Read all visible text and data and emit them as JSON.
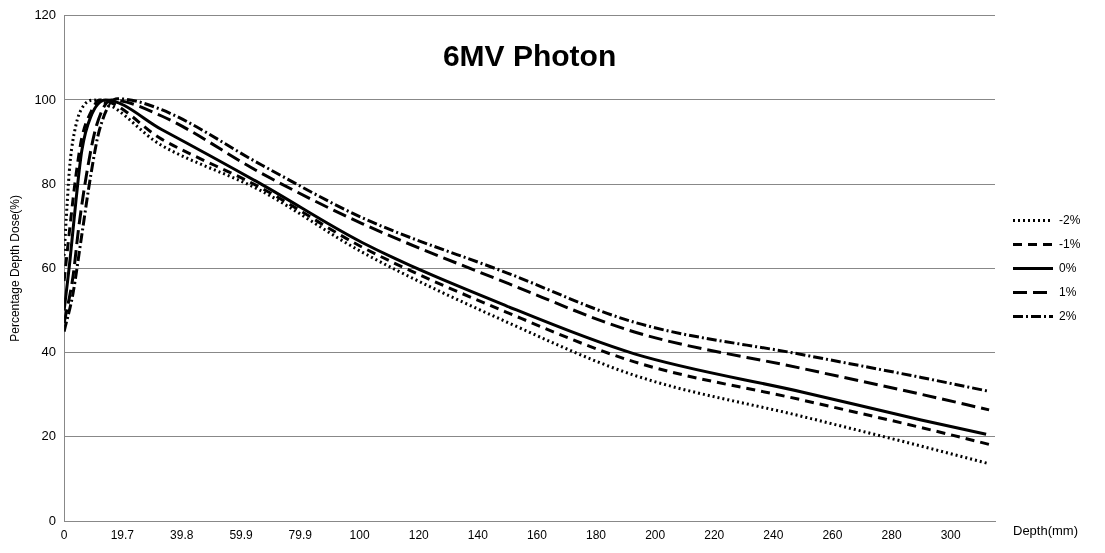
{
  "chart_data": {
    "type": "line",
    "title": "6MV Photon",
    "xlabel": "Depth(mm)",
    "ylabel": "Percentage Depth Dose(%)",
    "xlim": [
      0,
      315
    ],
    "xticks": [
      0,
      19.7,
      39.8,
      59.9,
      79.9,
      100,
      120,
      140,
      160,
      180,
      200,
      220,
      240,
      260,
      280,
      300
    ],
    "ylim": [
      0,
      120
    ],
    "yticks": [
      0,
      20,
      40,
      60,
      80,
      100,
      120
    ],
    "grid": "y",
    "legend": "right",
    "marker": "none",
    "series": [
      {
        "name": "-2%",
        "color": "#000000",
        "line_style": "dotted",
        "x": [
          0,
          1,
          2,
          4,
          6,
          10,
          33,
          67,
          101,
          150,
          193,
          250,
          290,
          313
        ],
        "values": [
          63,
          75,
          85,
          94,
          98,
          100,
          89.2,
          78.3,
          63.8,
          47.2,
          34.6,
          24.8,
          17.8,
          13.6
        ]
      },
      {
        "name": "-1%",
        "color": "#000000",
        "line_style": "dashed",
        "x": [
          0,
          2,
          4,
          6,
          9,
          12,
          33,
          67,
          101,
          150,
          193,
          250,
          290,
          313
        ],
        "values": [
          57,
          70,
          82,
          91,
          97,
          100,
          90.7,
          79,
          65,
          49.5,
          37.8,
          28.7,
          22.2,
          18.2
        ]
      },
      {
        "name": "0%",
        "color": "#000000",
        "line_style": "solid",
        "x": [
          0,
          2,
          4,
          6,
          9,
          14,
          33,
          67,
          101,
          150,
          193,
          250,
          290,
          312
        ],
        "values": [
          50,
          62,
          76,
          88,
          96,
          100,
          93,
          79.9,
          66.1,
          51,
          39.7,
          30.6,
          24,
          20.6
        ]
      },
      {
        "name": "1%",
        "color": "#000000",
        "line_style": "longdash",
        "x": [
          0,
          3,
          5,
          8,
          11,
          16,
          33,
          67,
          101,
          150,
          193,
          250,
          290,
          313
        ],
        "values": [
          47,
          58,
          70,
          84,
          94,
          100,
          96.2,
          82.5,
          70.6,
          56.5,
          44.9,
          36.2,
          30.1,
          26.4
        ]
      },
      {
        "name": "2%",
        "color": "#000000",
        "line_style": "dashdot",
        "x": [
          0,
          3,
          6,
          9,
          12,
          18,
          33,
          67,
          101,
          150,
          193,
          250,
          290,
          313
        ],
        "values": [
          45,
          54,
          68,
          82,
          93,
          100.3,
          97.7,
          84.5,
          72,
          58.9,
          47.2,
          39.5,
          34.1,
          30.8
        ]
      }
    ]
  }
}
